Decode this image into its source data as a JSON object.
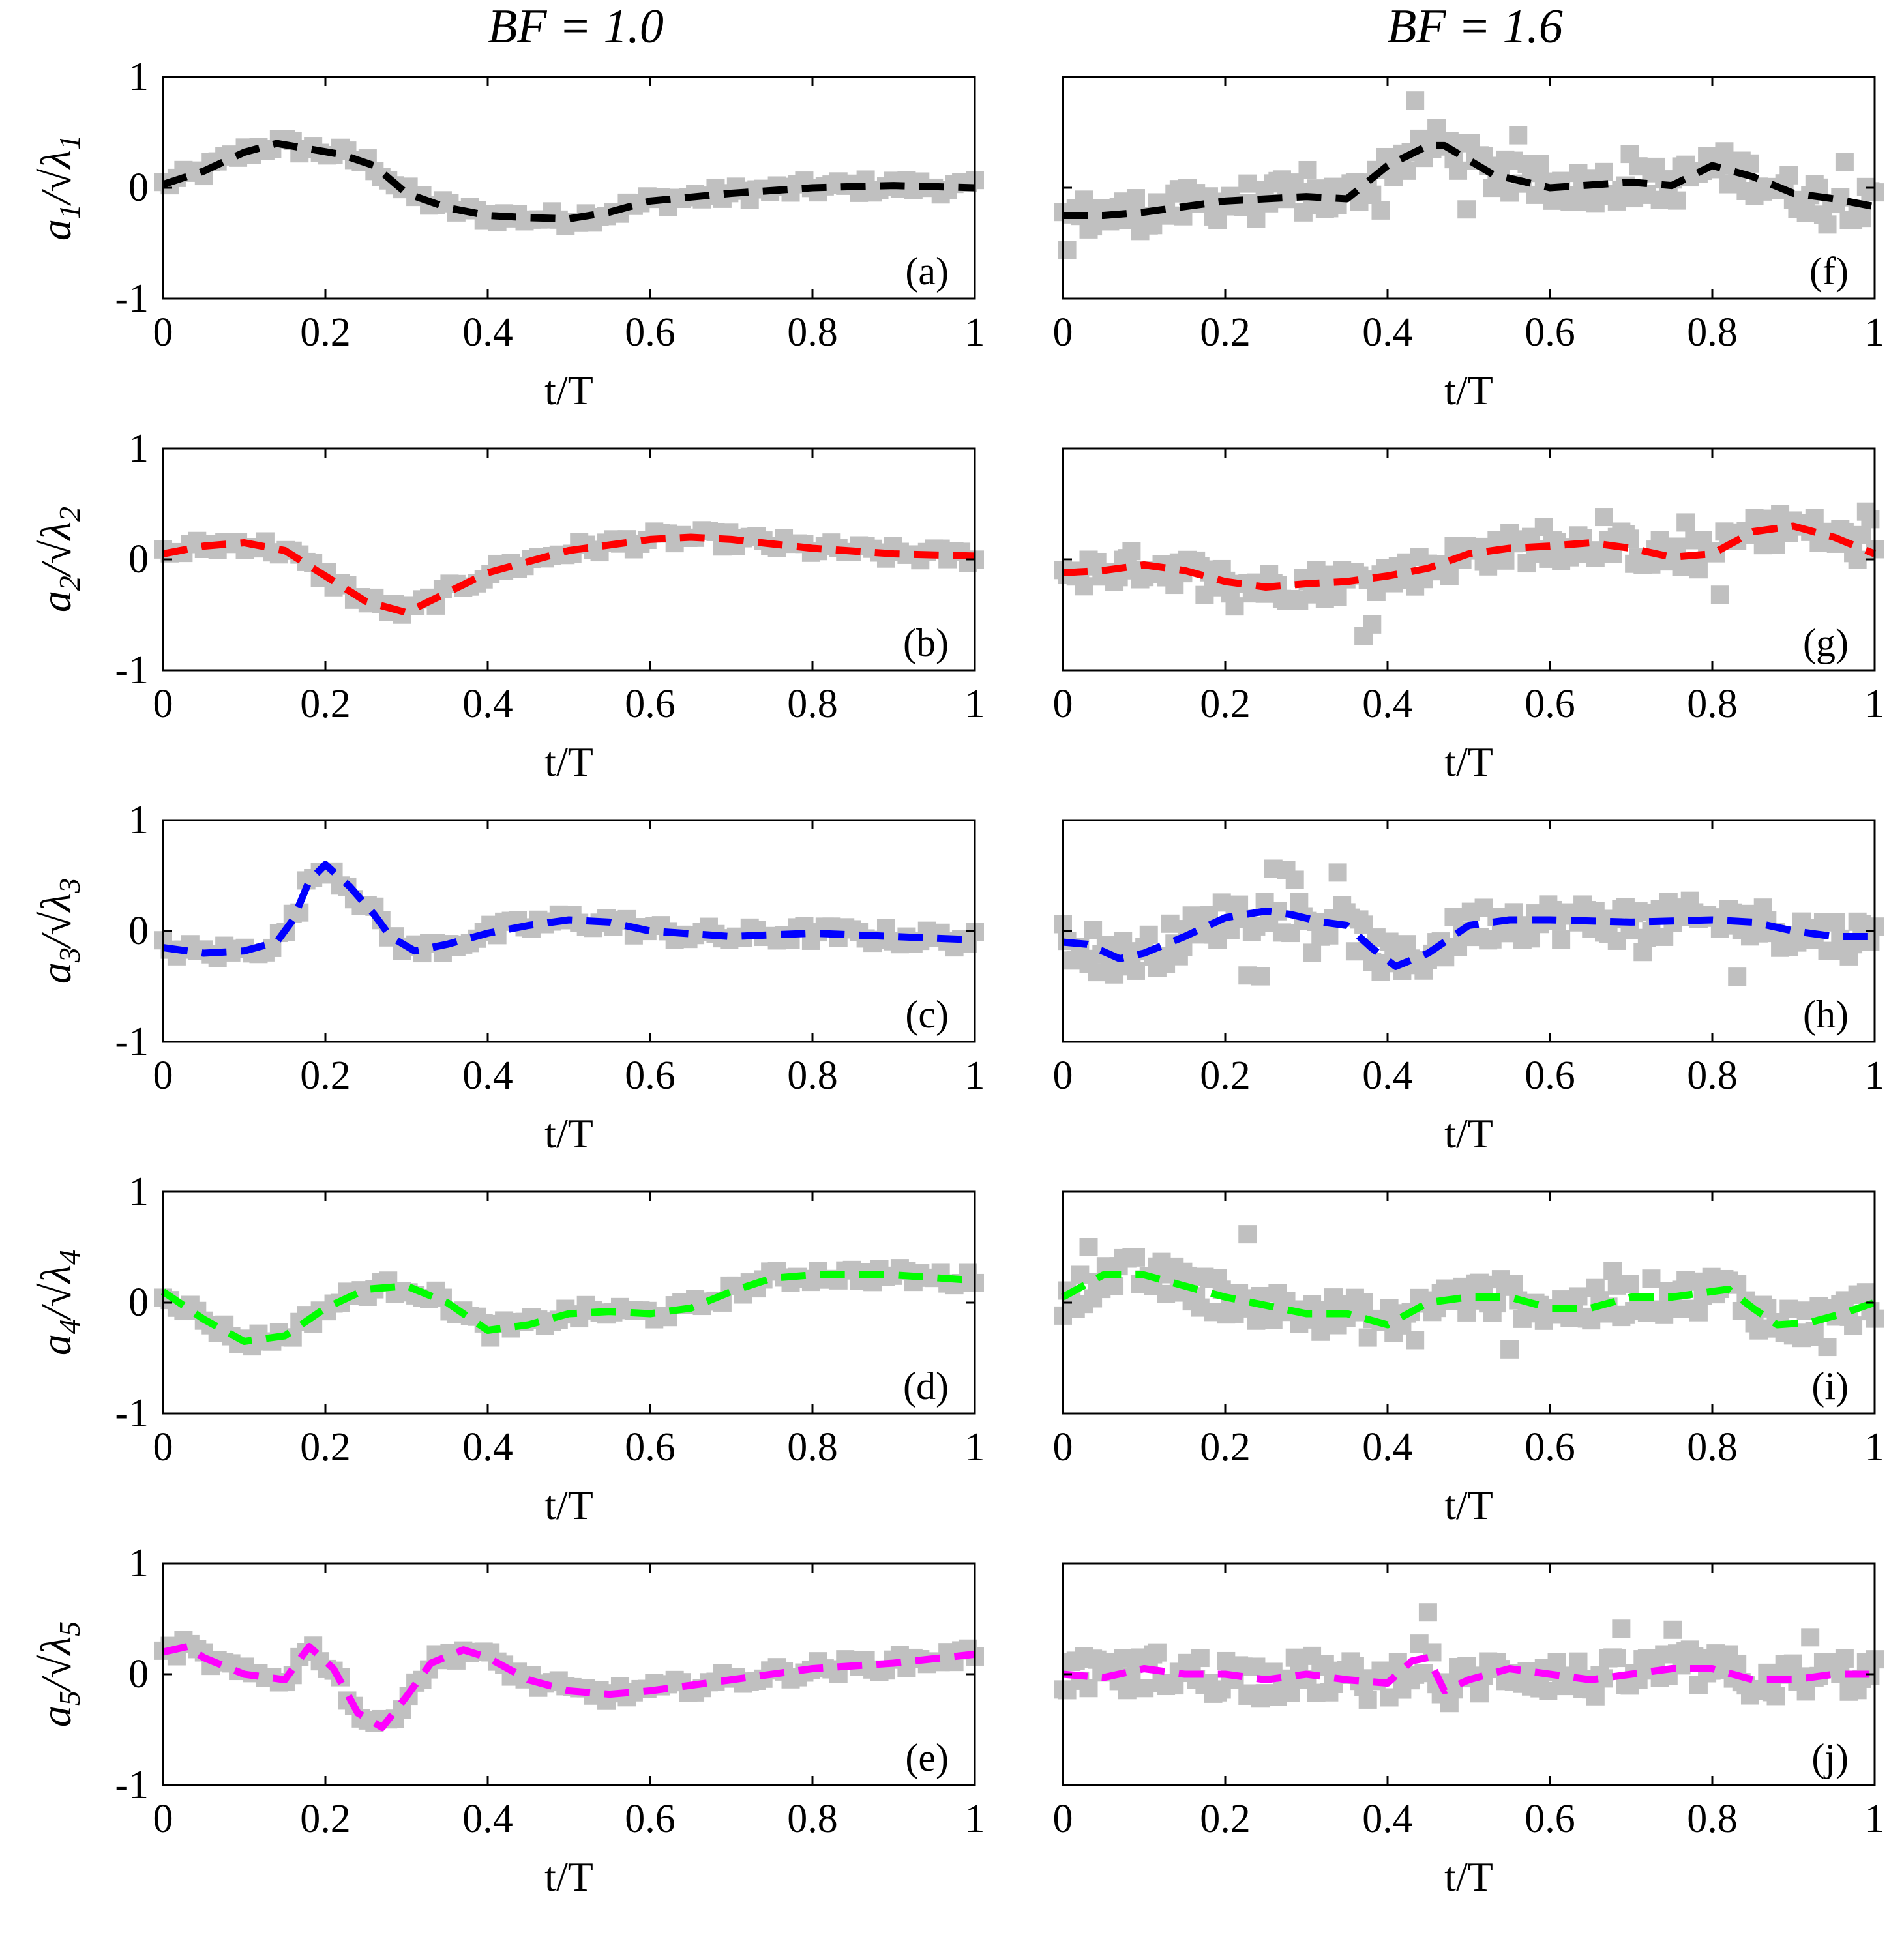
{
  "figure": {
    "column_titles": [
      "BF = 1.0",
      "BF = 1.6"
    ],
    "xlabel": "t/T",
    "x_ticks": [
      "0",
      "0.2",
      "0.4",
      "0.6",
      "0.8",
      "1"
    ],
    "y_ticks": [
      "1",
      "0",
      "-1"
    ],
    "row_ylabels": [
      {
        "a": "a",
        "sub": "1",
        "l": "λ",
        "lsub": "1"
      },
      {
        "a": "a",
        "sub": "2",
        "l": "λ",
        "lsub": "2"
      },
      {
        "a": "a",
        "sub": "3",
        "l": "λ",
        "lsub": "3"
      },
      {
        "a": "a",
        "sub": "4",
        "l": "λ",
        "lsub": "4"
      },
      {
        "a": "a",
        "sub": "5",
        "l": "λ",
        "lsub": "5"
      }
    ],
    "colors": {
      "scatter": "#c0c0c0",
      "mode1": "#000000",
      "mode2": "#ff0000",
      "mode3": "#0000ff",
      "mode4": "#00ff00",
      "mode5": "#ff00ff"
    }
  },
  "chart_data": [
    {
      "panel": "a",
      "type": "line",
      "column": "BF = 1.0",
      "mode": 1,
      "color": "#000000",
      "ylabel": "a1/√λ1",
      "xlabel": "t/T",
      "xlim": [
        0,
        1
      ],
      "ylim": [
        -1,
        1
      ],
      "x": [
        0,
        0.05,
        0.1,
        0.14,
        0.18,
        0.22,
        0.26,
        0.3,
        0.35,
        0.4,
        0.45,
        0.5,
        0.55,
        0.6,
        0.7,
        0.8,
        0.9,
        1.0
      ],
      "y": [
        0.03,
        0.15,
        0.32,
        0.4,
        0.35,
        0.3,
        0.2,
        -0.05,
        -0.18,
        -0.25,
        -0.27,
        -0.28,
        -0.22,
        -0.12,
        -0.05,
        0.0,
        0.02,
        0.0
      ],
      "scatter_spread": 0.07
    },
    {
      "panel": "f",
      "type": "line",
      "column": "BF = 1.6",
      "mode": 1,
      "color": "#000000",
      "ylabel": "a1/√λ1",
      "xlabel": "t/T",
      "xlim": [
        0,
        1
      ],
      "ylim": [
        -1,
        1
      ],
      "x": [
        0,
        0.05,
        0.1,
        0.2,
        0.3,
        0.35,
        0.4,
        0.45,
        0.47,
        0.5,
        0.53,
        0.6,
        0.7,
        0.75,
        0.8,
        0.85,
        0.9,
        0.95,
        1.0
      ],
      "y": [
        -0.25,
        -0.25,
        -0.22,
        -0.12,
        -0.08,
        -0.1,
        0.2,
        0.38,
        0.38,
        0.25,
        0.12,
        0.0,
        0.05,
        0.02,
        0.2,
        0.1,
        -0.05,
        -0.1,
        -0.17
      ],
      "scatter_spread": 0.17
    },
    {
      "panel": "b",
      "type": "line",
      "column": "BF = 1.0",
      "mode": 2,
      "color": "#ff0000",
      "ylabel": "a2/√λ2",
      "xlabel": "t/T",
      "xlim": [
        0,
        1
      ],
      "ylim": [
        -1,
        1
      ],
      "x": [
        0,
        0.05,
        0.1,
        0.15,
        0.2,
        0.25,
        0.3,
        0.35,
        0.4,
        0.5,
        0.6,
        0.65,
        0.7,
        0.8,
        0.9,
        1.0
      ],
      "y": [
        0.05,
        0.12,
        0.15,
        0.08,
        -0.15,
        -0.38,
        -0.48,
        -0.3,
        -0.12,
        0.08,
        0.18,
        0.2,
        0.18,
        0.1,
        0.05,
        0.03
      ],
      "scatter_spread": 0.07
    },
    {
      "panel": "g",
      "type": "line",
      "column": "BF = 1.6",
      "mode": 2,
      "color": "#ff0000",
      "ylabel": "a2/√λ2",
      "xlabel": "t/T",
      "xlim": [
        0,
        1
      ],
      "ylim": [
        -1,
        1
      ],
      "x": [
        0,
        0.05,
        0.1,
        0.15,
        0.2,
        0.25,
        0.3,
        0.35,
        0.4,
        0.45,
        0.5,
        0.55,
        0.6,
        0.65,
        0.7,
        0.75,
        0.8,
        0.85,
        0.9,
        0.95,
        1.0
      ],
      "y": [
        -0.12,
        -0.1,
        -0.05,
        -0.1,
        -0.2,
        -0.25,
        -0.22,
        -0.2,
        -0.15,
        -0.08,
        0.05,
        0.1,
        0.12,
        0.15,
        0.1,
        0.02,
        0.05,
        0.25,
        0.3,
        0.2,
        0.05
      ],
      "scatter_spread": 0.15
    },
    {
      "panel": "c",
      "type": "line",
      "column": "BF = 1.0",
      "mode": 3,
      "color": "#0000ff",
      "ylabel": "a3/√λ3",
      "xlabel": "t/T",
      "xlim": [
        0,
        1
      ],
      "ylim": [
        -1,
        1
      ],
      "x": [
        0,
        0.05,
        0.1,
        0.14,
        0.16,
        0.18,
        0.2,
        0.23,
        0.26,
        0.28,
        0.31,
        0.35,
        0.4,
        0.45,
        0.5,
        0.55,
        0.6,
        0.7,
        0.8,
        0.9,
        1.0
      ],
      "y": [
        -0.15,
        -0.2,
        -0.18,
        -0.1,
        0.1,
        0.45,
        0.6,
        0.4,
        0.15,
        -0.05,
        -0.18,
        -0.12,
        -0.02,
        0.05,
        0.1,
        0.08,
        0.0,
        -0.05,
        -0.02,
        -0.05,
        -0.08
      ],
      "scatter_spread": 0.08
    },
    {
      "panel": "h",
      "type": "line",
      "column": "BF = 1.6",
      "mode": 3,
      "color": "#0000ff",
      "ylabel": "a3/√λ3",
      "xlabel": "t/T",
      "xlim": [
        0,
        1
      ],
      "ylim": [
        -1,
        1
      ],
      "x": [
        0,
        0.03,
        0.07,
        0.1,
        0.15,
        0.2,
        0.25,
        0.28,
        0.32,
        0.35,
        0.38,
        0.41,
        0.45,
        0.5,
        0.55,
        0.6,
        0.7,
        0.8,
        0.85,
        0.9,
        0.95,
        1.0
      ],
      "y": [
        -0.1,
        -0.12,
        -0.25,
        -0.2,
        -0.05,
        0.12,
        0.18,
        0.15,
        0.08,
        0.05,
        -0.15,
        -0.32,
        -0.2,
        0.05,
        0.1,
        0.1,
        0.08,
        0.1,
        0.08,
        0.0,
        -0.05,
        -0.05
      ],
      "scatter_spread": 0.18
    },
    {
      "panel": "d",
      "type": "line",
      "column": "BF = 1.0",
      "mode": 4,
      "color": "#00ff00",
      "ylabel": "a4/√λ4",
      "xlabel": "t/T",
      "xlim": [
        0,
        1
      ],
      "ylim": [
        -1,
        1
      ],
      "x": [
        0,
        0.05,
        0.1,
        0.15,
        0.2,
        0.25,
        0.3,
        0.35,
        0.4,
        0.45,
        0.5,
        0.55,
        0.6,
        0.65,
        0.7,
        0.75,
        0.8,
        0.9,
        1.0
      ],
      "y": [
        0.1,
        -0.15,
        -0.35,
        -0.3,
        -0.05,
        0.12,
        0.15,
        0.0,
        -0.25,
        -0.2,
        -0.1,
        -0.08,
        -0.1,
        -0.05,
        0.1,
        0.22,
        0.25,
        0.25,
        0.2
      ],
      "scatter_spread": 0.07
    },
    {
      "panel": "i",
      "type": "line",
      "column": "BF = 1.6",
      "mode": 4,
      "color": "#00ff00",
      "ylabel": "a4/√λ4",
      "xlabel": "t/T",
      "xlim": [
        0,
        1
      ],
      "ylim": [
        -1,
        1
      ],
      "x": [
        0,
        0.05,
        0.1,
        0.15,
        0.2,
        0.3,
        0.35,
        0.4,
        0.45,
        0.5,
        0.55,
        0.6,
        0.65,
        0.7,
        0.75,
        0.8,
        0.82,
        0.85,
        0.88,
        0.92,
        0.96,
        1.0
      ],
      "y": [
        0.05,
        0.25,
        0.25,
        0.15,
        0.05,
        -0.1,
        -0.1,
        -0.2,
        0.0,
        0.05,
        0.05,
        -0.05,
        -0.05,
        0.05,
        0.05,
        0.1,
        0.12,
        -0.05,
        -0.2,
        -0.18,
        -0.1,
        0.0
      ],
      "scatter_spread": 0.17
    },
    {
      "panel": "e",
      "type": "line",
      "column": "BF = 1.0",
      "mode": 5,
      "color": "#ff00ff",
      "ylabel": "a5/√λ5",
      "xlabel": "t/T",
      "xlim": [
        0,
        1
      ],
      "ylim": [
        -1,
        1
      ],
      "x": [
        0,
        0.03,
        0.05,
        0.1,
        0.15,
        0.18,
        0.21,
        0.24,
        0.27,
        0.3,
        0.33,
        0.37,
        0.4,
        0.45,
        0.5,
        0.55,
        0.6,
        0.7,
        0.8,
        0.9,
        1.0
      ],
      "y": [
        0.2,
        0.25,
        0.15,
        0.0,
        -0.05,
        0.25,
        0.05,
        -0.35,
        -0.48,
        -0.2,
        0.1,
        0.22,
        0.15,
        -0.05,
        -0.15,
        -0.18,
        -0.15,
        -0.05,
        0.05,
        0.1,
        0.18
      ],
      "scatter_spread": 0.07
    },
    {
      "panel": "j",
      "type": "line",
      "column": "BF = 1.6",
      "mode": 5,
      "color": "#ff00ff",
      "ylabel": "a5/√λ5",
      "xlabel": "t/T",
      "xlim": [
        0,
        1
      ],
      "ylim": [
        -1,
        1
      ],
      "x": [
        0,
        0.05,
        0.1,
        0.15,
        0.2,
        0.25,
        0.3,
        0.35,
        0.4,
        0.43,
        0.45,
        0.47,
        0.5,
        0.55,
        0.6,
        0.65,
        0.7,
        0.75,
        0.8,
        0.85,
        0.9,
        0.95,
        1.0
      ],
      "y": [
        0.0,
        -0.03,
        0.05,
        0.0,
        0.0,
        -0.05,
        0.0,
        -0.05,
        -0.08,
        0.12,
        0.15,
        -0.15,
        -0.05,
        0.05,
        0.0,
        -0.05,
        0.0,
        0.05,
        0.05,
        -0.05,
        -0.05,
        0.0,
        0.0
      ],
      "scatter_spread": 0.18
    }
  ]
}
